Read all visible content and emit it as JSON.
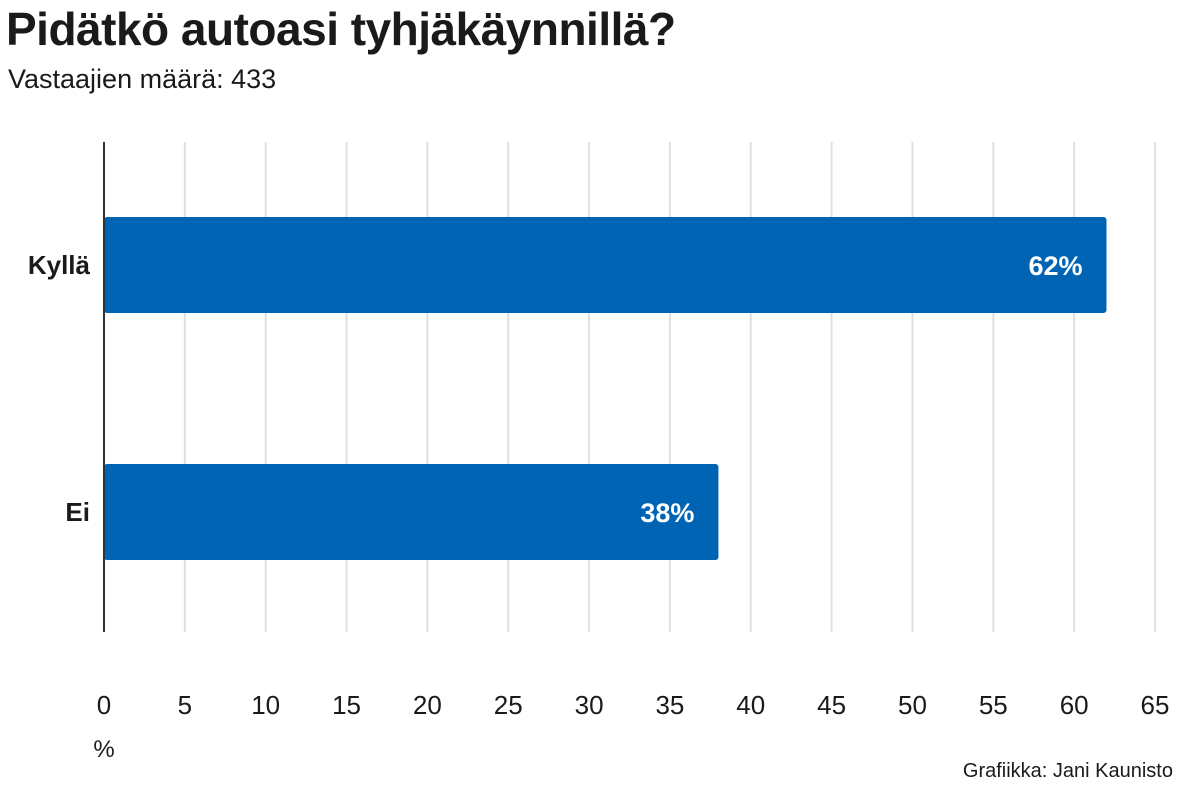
{
  "header": {
    "title": "Pidätkö autoasi tyhjäkäynnillä?",
    "subtitle": "Vastaajien määrä: 433"
  },
  "footer": {
    "credit": "Grafiikka: Jani Kaunisto"
  },
  "colors": {
    "bar": "#0064b4",
    "grid": "#e0e0e0",
    "axis": "#333333"
  },
  "chart_data": {
    "type": "bar",
    "orientation": "horizontal",
    "categories": [
      "Kyllä",
      "Ei"
    ],
    "values": [
      62,
      38
    ],
    "data_labels": [
      "62%",
      "38%"
    ],
    "title": "Pidätkö autoasi tyhjäkäynnillä?",
    "subtitle": "Vastaajien määrä: 433",
    "xlabel": "%",
    "ylabel": "",
    "xlim": [
      0,
      65
    ],
    "x_ticks": [
      0,
      5,
      10,
      15,
      20,
      25,
      30,
      35,
      40,
      45,
      50,
      55,
      60,
      65
    ],
    "grid": true
  }
}
